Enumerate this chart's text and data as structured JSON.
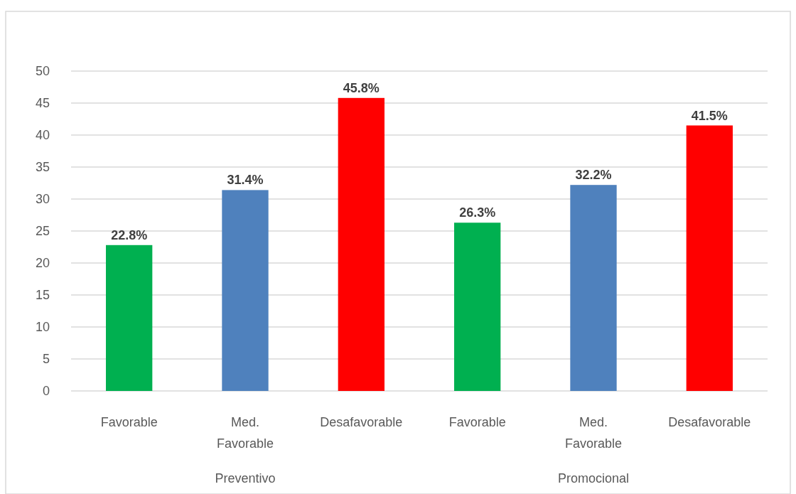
{
  "chart_data": {
    "type": "bar",
    "categories": [
      "Favorable",
      "Med. Favorable",
      "Desafavorable",
      "Favorable",
      "Med. Favorable",
      "Desafavorable"
    ],
    "values": [
      22.8,
      31.4,
      45.8,
      26.3,
      32.2,
      41.5
    ],
    "colors": [
      "#00b050",
      "#4f81bd",
      "#ff0000",
      "#00b050",
      "#4f81bd",
      "#ff0000"
    ],
    "value_labels": [
      "22.8%",
      "31.4%",
      "45.8%",
      "26.3%",
      "32.2%",
      "41.5%"
    ],
    "ylim": [
      0,
      50
    ],
    "yticks": [
      0,
      5,
      10,
      15,
      20,
      25,
      30,
      35,
      40,
      45,
      50
    ],
    "grid": "y",
    "annotations": [
      "Preventivo",
      "Promocional"
    ]
  }
}
